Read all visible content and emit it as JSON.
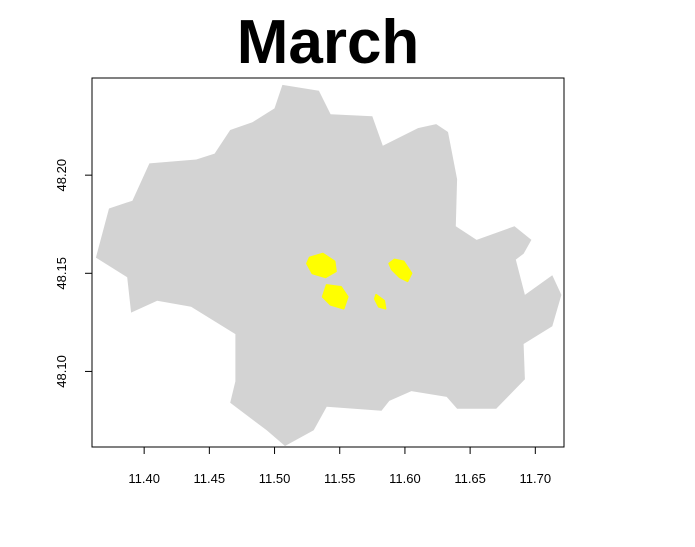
{
  "chart_data": {
    "type": "map",
    "title": "March",
    "xlabel": "",
    "ylabel": "",
    "xlim": [
      11.36,
      11.722
    ],
    "ylim": [
      48.0615,
      48.2495
    ],
    "x_ticks": [
      "11.40",
      "11.45",
      "11.50",
      "11.55",
      "11.60",
      "11.65",
      "11.70"
    ],
    "x_tick_values": [
      11.4,
      11.45,
      11.5,
      11.55,
      11.6,
      11.65,
      11.7
    ],
    "y_ticks": [
      "48.10",
      "48.15",
      "48.20"
    ],
    "y_tick_values": [
      48.1,
      48.15,
      48.2
    ],
    "grid": false,
    "colors": {
      "boundary_fill": "#d3d3d3",
      "highlight_fill": "#ffff00",
      "frame": "#000000"
    },
    "boundary": [
      [
        11.506,
        48.246
      ],
      [
        11.534,
        48.243
      ],
      [
        11.543,
        48.231
      ],
      [
        11.575,
        48.23
      ],
      [
        11.583,
        48.215
      ],
      [
        11.61,
        48.224
      ],
      [
        11.624,
        48.226
      ],
      [
        11.633,
        48.222
      ],
      [
        11.64,
        48.198
      ],
      [
        11.639,
        48.174
      ],
      [
        11.655,
        48.167
      ],
      [
        11.684,
        48.174
      ],
      [
        11.697,
        48.167
      ],
      [
        11.691,
        48.16
      ],
      [
        11.685,
        48.157
      ],
      [
        11.692,
        48.139
      ],
      [
        11.713,
        48.149
      ],
      [
        11.72,
        48.139
      ],
      [
        11.713,
        48.123
      ],
      [
        11.691,
        48.114
      ],
      [
        11.692,
        48.096
      ],
      [
        11.67,
        48.081
      ],
      [
        11.64,
        48.081
      ],
      [
        11.632,
        48.087
      ],
      [
        11.605,
        48.09
      ],
      [
        11.588,
        48.085
      ],
      [
        11.582,
        48.08
      ],
      [
        11.54,
        48.082
      ],
      [
        11.53,
        48.07
      ],
      [
        11.508,
        48.062
      ],
      [
        11.494,
        48.07
      ],
      [
        11.466,
        48.084
      ],
      [
        11.47,
        48.095
      ],
      [
        11.47,
        48.119
      ],
      [
        11.436,
        48.133
      ],
      [
        11.41,
        48.136
      ],
      [
        11.39,
        48.13
      ],
      [
        11.387,
        48.148
      ],
      [
        11.363,
        48.158
      ],
      [
        11.373,
        48.183
      ],
      [
        11.391,
        48.187
      ],
      [
        11.404,
        48.206
      ],
      [
        11.44,
        48.208
      ],
      [
        11.454,
        48.211
      ],
      [
        11.466,
        48.223
      ],
      [
        11.483,
        48.227
      ],
      [
        11.5,
        48.234
      ]
    ],
    "highlight_regions": [
      {
        "outline": [
          [
            11.527,
            48.158
          ],
          [
            11.537,
            48.16
          ],
          [
            11.546,
            48.156
          ],
          [
            11.547,
            48.151
          ],
          [
            11.539,
            48.148
          ],
          [
            11.529,
            48.15
          ],
          [
            11.525,
            48.155
          ]
        ]
      },
      {
        "outline": [
          [
            11.592,
            48.157
          ],
          [
            11.599,
            48.156
          ],
          [
            11.605,
            48.15
          ],
          [
            11.602,
            48.146
          ],
          [
            11.596,
            48.148
          ],
          [
            11.59,
            48.152
          ],
          [
            11.588,
            48.155
          ]
        ]
      },
      {
        "outline": [
          [
            11.54,
            48.144
          ],
          [
            11.551,
            48.143
          ],
          [
            11.556,
            48.138
          ],
          [
            11.553,
            48.132
          ],
          [
            11.543,
            48.134
          ],
          [
            11.537,
            48.138
          ]
        ]
      },
      {
        "outline": [
          [
            11.578,
            48.139
          ],
          [
            11.584,
            48.136
          ],
          [
            11.585,
            48.132
          ],
          [
            11.58,
            48.133
          ],
          [
            11.577,
            48.137
          ]
        ]
      }
    ]
  }
}
